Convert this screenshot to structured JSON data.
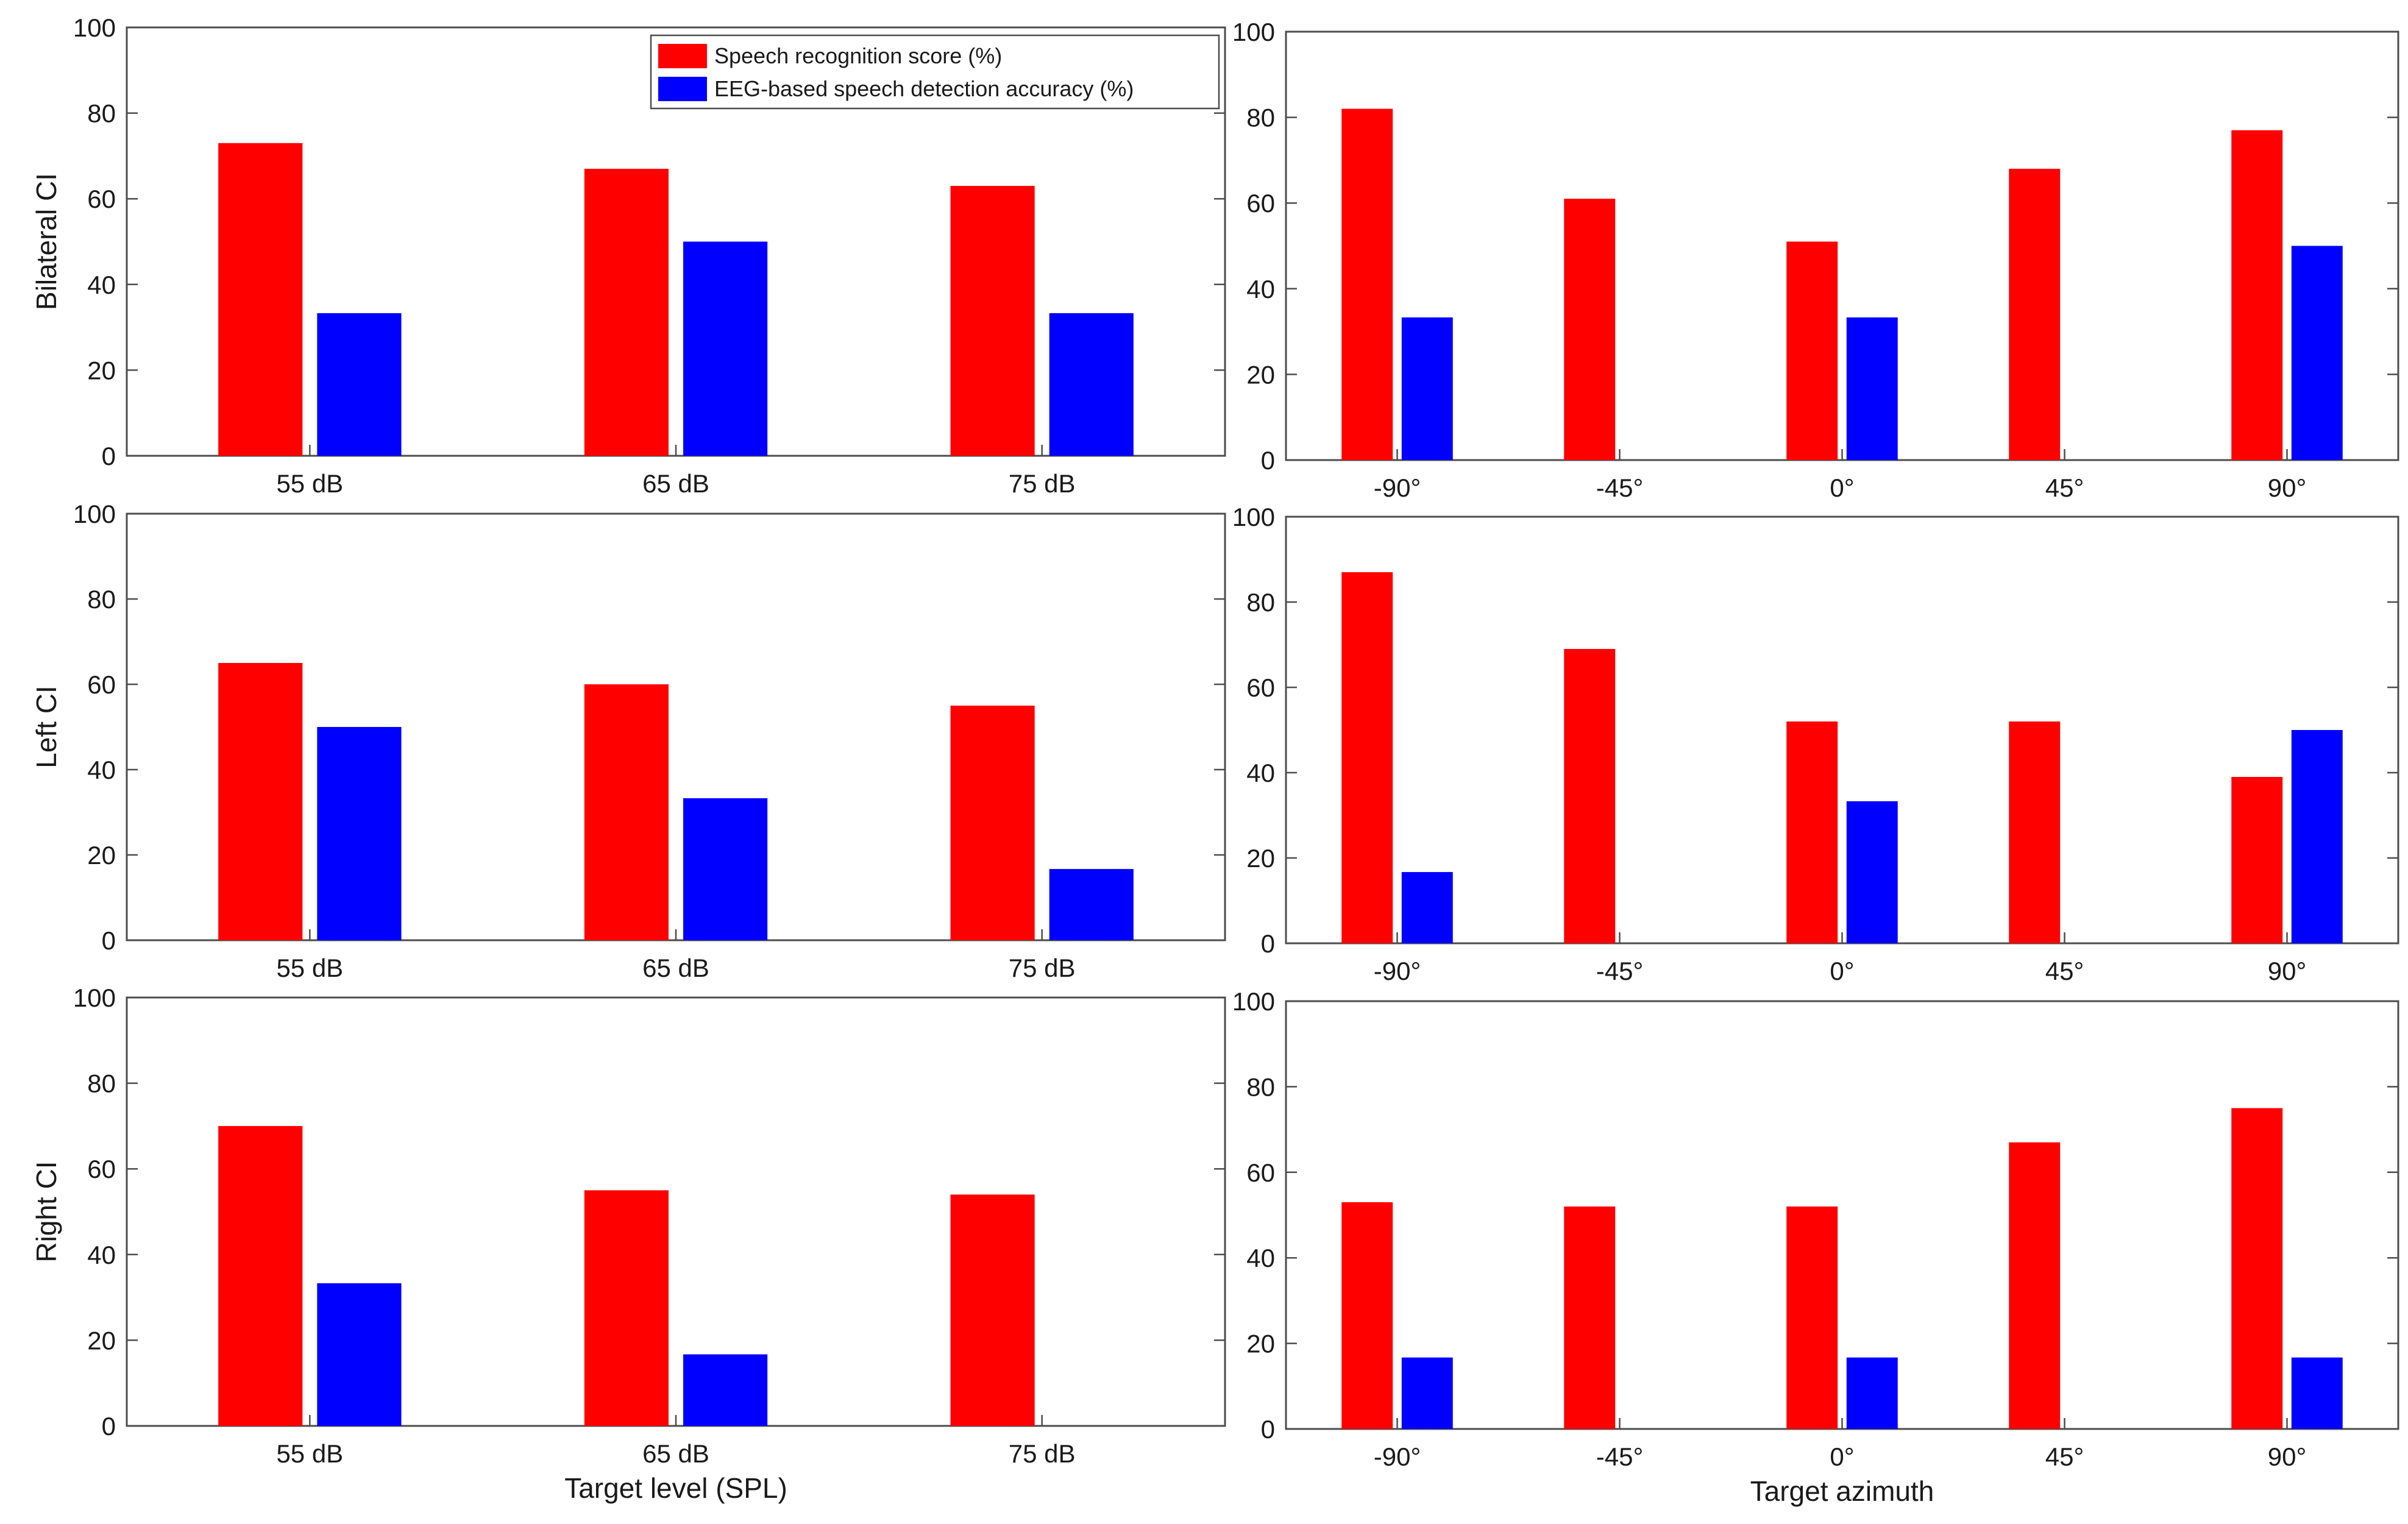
{
  "chart_data": [
    {
      "type": "bar",
      "panel": "row1-left",
      "ylabel": "Bilateral CI",
      "xlabel": "",
      "categories": [
        "55 dB",
        "65 dB",
        "75 dB"
      ],
      "ylim": [
        0,
        100
      ],
      "yticks": [
        "0",
        "20",
        "40",
        "60",
        "80",
        "100"
      ],
      "series": [
        {
          "name": "Speech recognition score (%)",
          "color": "#ff0000",
          "values": [
            73,
            67,
            63
          ]
        },
        {
          "name": "EEG-based speech detection accuracy (%)",
          "color": "#0000ff",
          "values": [
            33.3,
            50,
            33.3
          ]
        }
      ]
    },
    {
      "type": "bar",
      "panel": "row1-right",
      "ylabel": "",
      "xlabel": "",
      "categories": [
        "-90°",
        "-45°",
        "0°",
        "45°",
        "90°"
      ],
      "ylim": [
        0,
        100
      ],
      "yticks": [
        "0",
        "20",
        "40",
        "60",
        "80",
        "100"
      ],
      "series": [
        {
          "name": "Speech recognition score (%)",
          "color": "#ff0000",
          "values": [
            82,
            61,
            51,
            68,
            77
          ]
        },
        {
          "name": "EEG-based speech detection accuracy (%)",
          "color": "#0000ff",
          "values": [
            33.3,
            0,
            33.3,
            0,
            50
          ]
        }
      ]
    },
    {
      "type": "bar",
      "panel": "row2-left",
      "ylabel": "Left CI",
      "xlabel": "",
      "categories": [
        "55 dB",
        "65 dB",
        "75 dB"
      ],
      "ylim": [
        0,
        100
      ],
      "yticks": [
        "0",
        "20",
        "40",
        "60",
        "80",
        "100"
      ],
      "series": [
        {
          "name": "Speech recognition score (%)",
          "color": "#ff0000",
          "values": [
            65,
            60,
            55
          ]
        },
        {
          "name": "EEG-based speech detection accuracy (%)",
          "color": "#0000ff",
          "values": [
            50,
            33.3,
            16.7
          ]
        }
      ]
    },
    {
      "type": "bar",
      "panel": "row2-right",
      "ylabel": "",
      "xlabel": "",
      "categories": [
        "-90°",
        "-45°",
        "0°",
        "45°",
        "90°"
      ],
      "ylim": [
        0,
        100
      ],
      "yticks": [
        "0",
        "20",
        "40",
        "60",
        "80",
        "100"
      ],
      "series": [
        {
          "name": "Speech recognition score (%)",
          "color": "#ff0000",
          "values": [
            87,
            69,
            52,
            52,
            39
          ]
        },
        {
          "name": "EEG-based speech detection accuracy (%)",
          "color": "#0000ff",
          "values": [
            16.7,
            0,
            33.3,
            0,
            50
          ]
        }
      ]
    },
    {
      "type": "bar",
      "panel": "row3-left",
      "ylabel": "Right CI",
      "xlabel": "Target level (SPL)",
      "categories": [
        "55 dB",
        "65 dB",
        "75 dB"
      ],
      "ylim": [
        0,
        100
      ],
      "yticks": [
        "0",
        "20",
        "40",
        "60",
        "80",
        "100"
      ],
      "series": [
        {
          "name": "Speech recognition score (%)",
          "color": "#ff0000",
          "values": [
            70,
            55,
            54
          ]
        },
        {
          "name": "EEG-based speech detection accuracy (%)",
          "color": "#0000ff",
          "values": [
            33.3,
            16.7,
            0
          ]
        }
      ]
    },
    {
      "type": "bar",
      "panel": "row3-right",
      "ylabel": "",
      "xlabel": "Target azimuth",
      "categories": [
        "-90°",
        "-45°",
        "0°",
        "45°",
        "90°"
      ],
      "ylim": [
        0,
        100
      ],
      "yticks": [
        "0",
        "20",
        "40",
        "60",
        "80",
        "100"
      ],
      "series": [
        {
          "name": "Speech recognition score (%)",
          "color": "#ff0000",
          "values": [
            53,
            52,
            52,
            67,
            75
          ]
        },
        {
          "name": "EEG-based speech detection accuracy (%)",
          "color": "#0000ff",
          "values": [
            16.7,
            0,
            16.7,
            0,
            16.7
          ]
        }
      ]
    }
  ],
  "legend": {
    "location": "top-right of first panel",
    "items": [
      {
        "label": "Speech recognition score (%)",
        "color": "#ff0000"
      },
      {
        "label": "EEG-based speech detection accuracy (%)",
        "color": "#0000ff"
      }
    ]
  }
}
